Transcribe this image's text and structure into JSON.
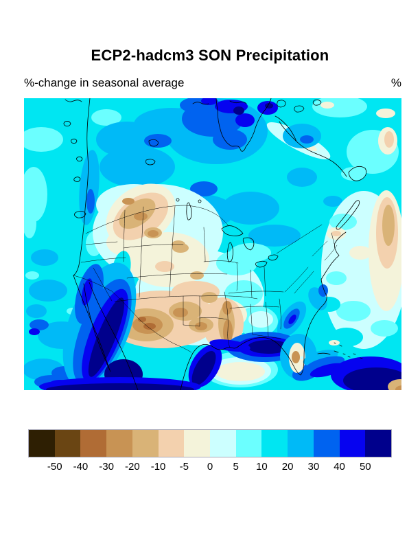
{
  "title": "ECP2-hadcm3 SON Precipitation",
  "subtitle": "%-change in seasonal average",
  "units_label": "%",
  "chart_data": {
    "type": "heatmap",
    "variant": "filled-contour-map",
    "title": "ECP2-hadcm3 SON Precipitation",
    "subtitle": "%-change in seasonal average",
    "units": "%",
    "region": "North America (Canada, contiguous United States, Mexico, adjacent Pacific and Atlantic oceans)",
    "overlays": [
      "coastlines",
      "US state borders",
      "national borders",
      "Great Lakes",
      "Hudson Bay"
    ],
    "colorbar": {
      "orientation": "horizontal",
      "position": "bottom",
      "tick_labels": [
        "-50",
        "-40",
        "-30",
        "-20",
        "-10",
        "-5",
        "0",
        "5",
        "10",
        "20",
        "30",
        "40",
        "50"
      ],
      "levels": [
        -60,
        -50,
        -40,
        -30,
        -20,
        -10,
        -5,
        0,
        5,
        10,
        20,
        30,
        40,
        50,
        60
      ],
      "colors": [
        "#2e1f03",
        "#6a4513",
        "#b06c35",
        "#c89354",
        "#d9b377",
        "#f3d1ae",
        "#f4f3da",
        "#ccffff",
        "#6bffff",
        "#00e6f2",
        "#00baf7",
        "#0063f0",
        "#0603f0",
        "#00008c"
      ]
    },
    "features": [
      {
        "area": "Most of Canada and northern oceans",
        "value_pct": "+10 to +30"
      },
      {
        "area": "Arctic islands / north of Hudson Bay",
        "value_pct": "+30 to >+50"
      },
      {
        "area": "Central US plains and prairies",
        "value_pct": "-5 to +5"
      },
      {
        "area": "Montana / Saskatchewan border cluster",
        "value_pct": "-10 to -30"
      },
      {
        "area": "New Mexico / Texas / Oklahoma",
        "value_pct": "-10 to -40"
      },
      {
        "area": "Arkansas / lower Mississippi valley",
        "value_pct": "-20 to -30"
      },
      {
        "area": "Baja California and Mexican Pacific coast",
        "value_pct": "+40 to >+50"
      },
      {
        "area": "Northern Gulf coast and offshore Gulf of Mexico",
        "value_pct": "+40 to >+50"
      },
      {
        "area": "Central Gulf of Mexico",
        "value_pct": "-5 to 0"
      },
      {
        "area": "Central Florida",
        "value_pct": "-20 to -30"
      },
      {
        "area": "Western Atlantic",
        "value_pct": "0 to +10"
      },
      {
        "area": "Far-eastern Atlantic edge",
        "value_pct": "-10 to -20"
      },
      {
        "area": "Deep tropics along bottom edge",
        "value_pct": ">+50"
      }
    ]
  }
}
